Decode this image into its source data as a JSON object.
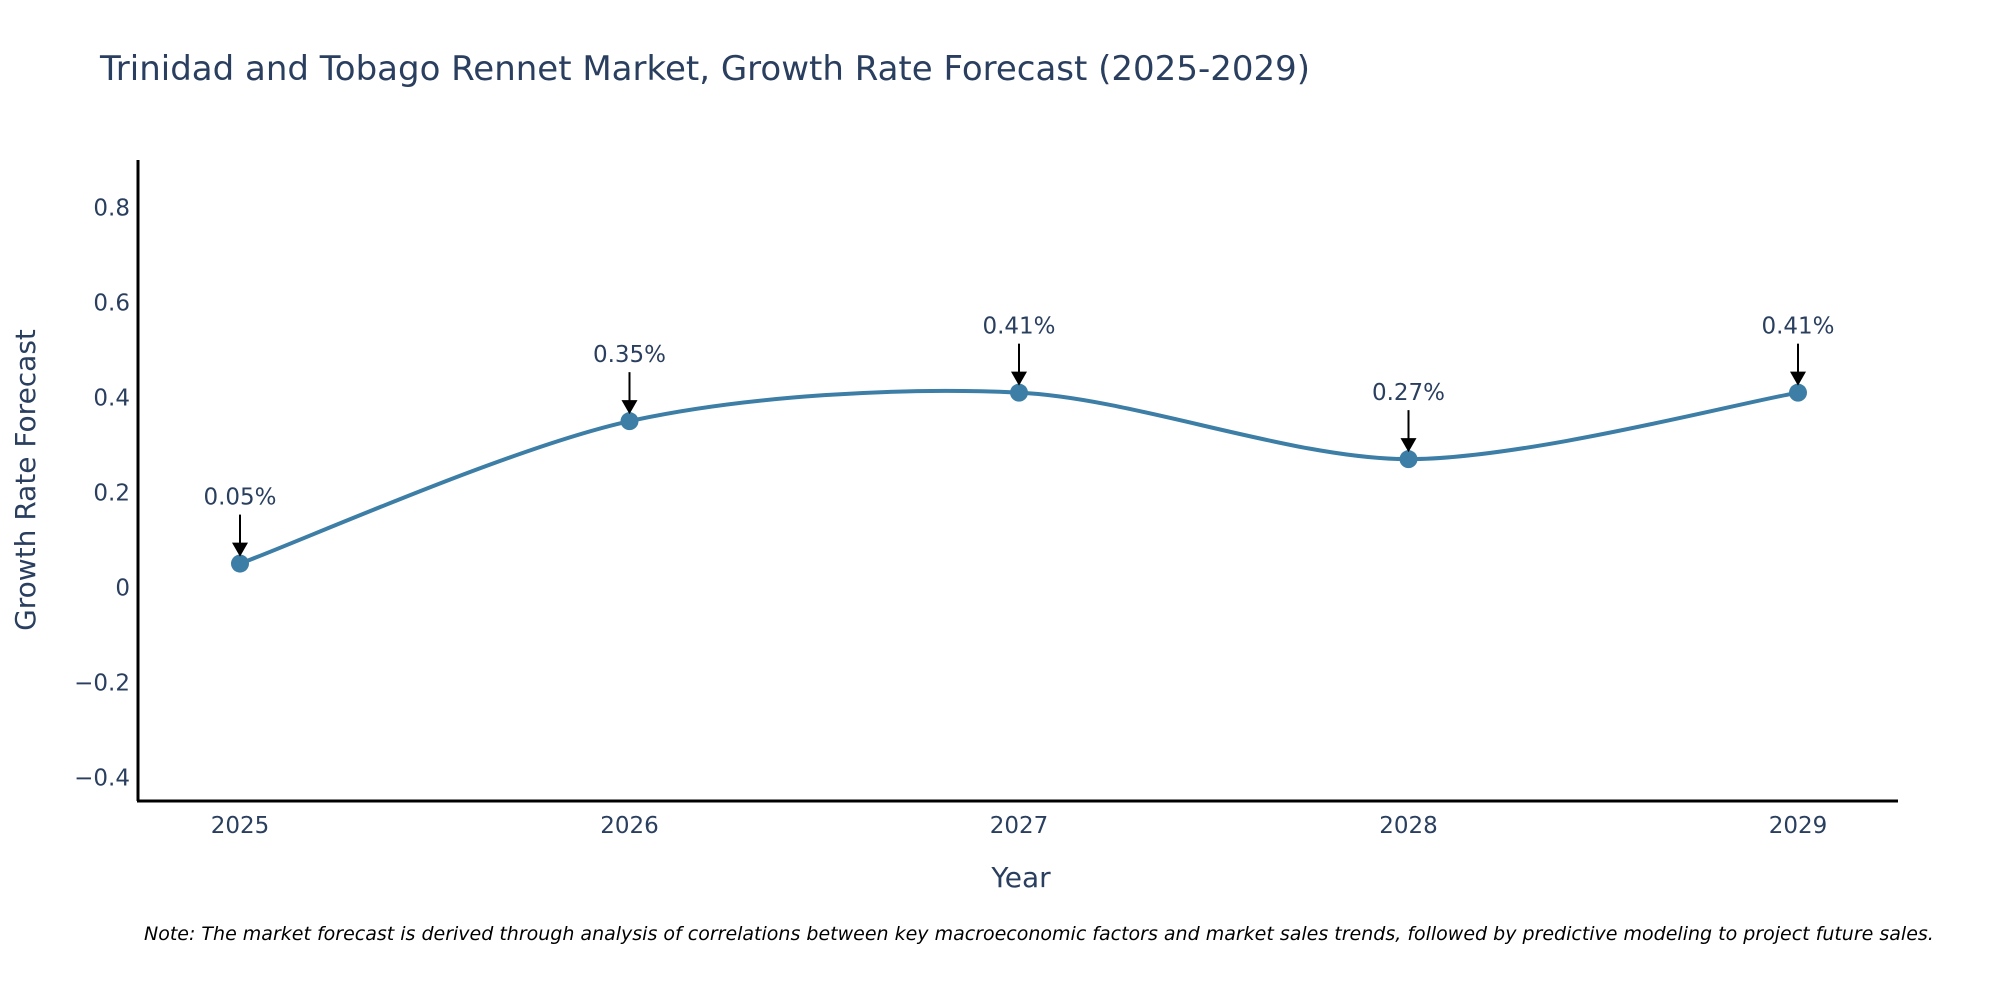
{
  "chart_data": {
    "type": "line",
    "title": "Trinidad and Tobago Rennet Market, Growth Rate Forecast (2025-2029)",
    "xlabel": "Year",
    "ylabel": "Growth Rate Forecast",
    "categories": [
      "2025",
      "2026",
      "2027",
      "2028",
      "2029"
    ],
    "values": [
      0.05,
      0.35,
      0.41,
      0.27,
      0.41
    ],
    "data_labels": [
      "0.05%",
      "0.35%",
      "0.41%",
      "0.27%",
      "0.41%"
    ],
    "ylim": [
      -0.45,
      0.9
    ],
    "yticks": [
      -0.4,
      -0.2,
      0,
      0.2,
      0.4,
      0.6,
      0.8
    ],
    "ytick_labels": [
      "−0.4",
      "−0.2",
      "0",
      "0.2",
      "0.4",
      "0.6",
      "0.8"
    ],
    "line_color": "#3d7ea6",
    "marker_color": "#3d7ea6",
    "grid": false
  },
  "note": "Note: The market forecast is derived through analysis of correlations between key macroeconomic factors and market sales trends, followed by predictive modeling to project future sales."
}
